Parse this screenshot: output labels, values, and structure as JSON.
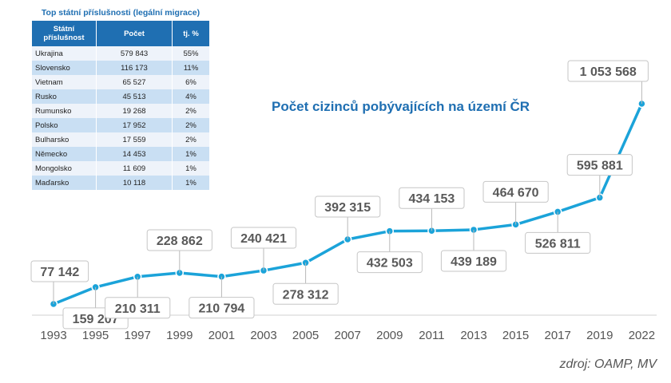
{
  "table": {
    "title": "Top státní příslušnosti (legální migrace)",
    "headers": [
      "Státní příslušnost",
      "Počet",
      "tj. %"
    ],
    "rows": [
      [
        "Ukrajina",
        "579 843",
        "55%"
      ],
      [
        "Slovensko",
        "116 173",
        "11%"
      ],
      [
        "Vietnam",
        "65 527",
        "6%"
      ],
      [
        "Rusko",
        "45 513",
        "4%"
      ],
      [
        "Rumunsko",
        "19 268",
        "2%"
      ],
      [
        "Polsko",
        "17 952",
        "2%"
      ],
      [
        "Bulharsko",
        "17 559",
        "2%"
      ],
      [
        "Německo",
        "14 453",
        "1%"
      ],
      [
        "Mongolsko",
        "11 609",
        "1%"
      ],
      [
        "Maďarsko",
        "10 118",
        "1%"
      ]
    ]
  },
  "chart_data": {
    "type": "line",
    "title": "Počet cizinců pobývajících na území ČR",
    "x": [
      "1993",
      "1995",
      "1997",
      "1999",
      "2001",
      "2003",
      "2005",
      "2007",
      "2009",
      "2011",
      "2013",
      "2015",
      "2017",
      "2019",
      "2022"
    ],
    "values": [
      77142,
      159207,
      210311,
      228862,
      210794,
      240421,
      278312,
      392315,
      432503,
      434153,
      439189,
      464670,
      526811,
      595881,
      1053568
    ],
    "labels": [
      "77 142",
      "159 207",
      "210 311",
      "228 862",
      "210 794",
      "240 421",
      "278 312",
      "392 315",
      "432 503",
      "434 153",
      "439 189",
      "464 670",
      "526 811",
      "595 881",
      "1 053 568"
    ],
    "label_side": [
      "above",
      "below",
      "below",
      "above",
      "below",
      "above",
      "below",
      "above",
      "below",
      "above",
      "below",
      "above",
      "below",
      "above",
      "above"
    ],
    "grid": false,
    "legend": "none",
    "line_color": "#1ba3d9"
  },
  "source": "zdroj: OAMP, MV"
}
